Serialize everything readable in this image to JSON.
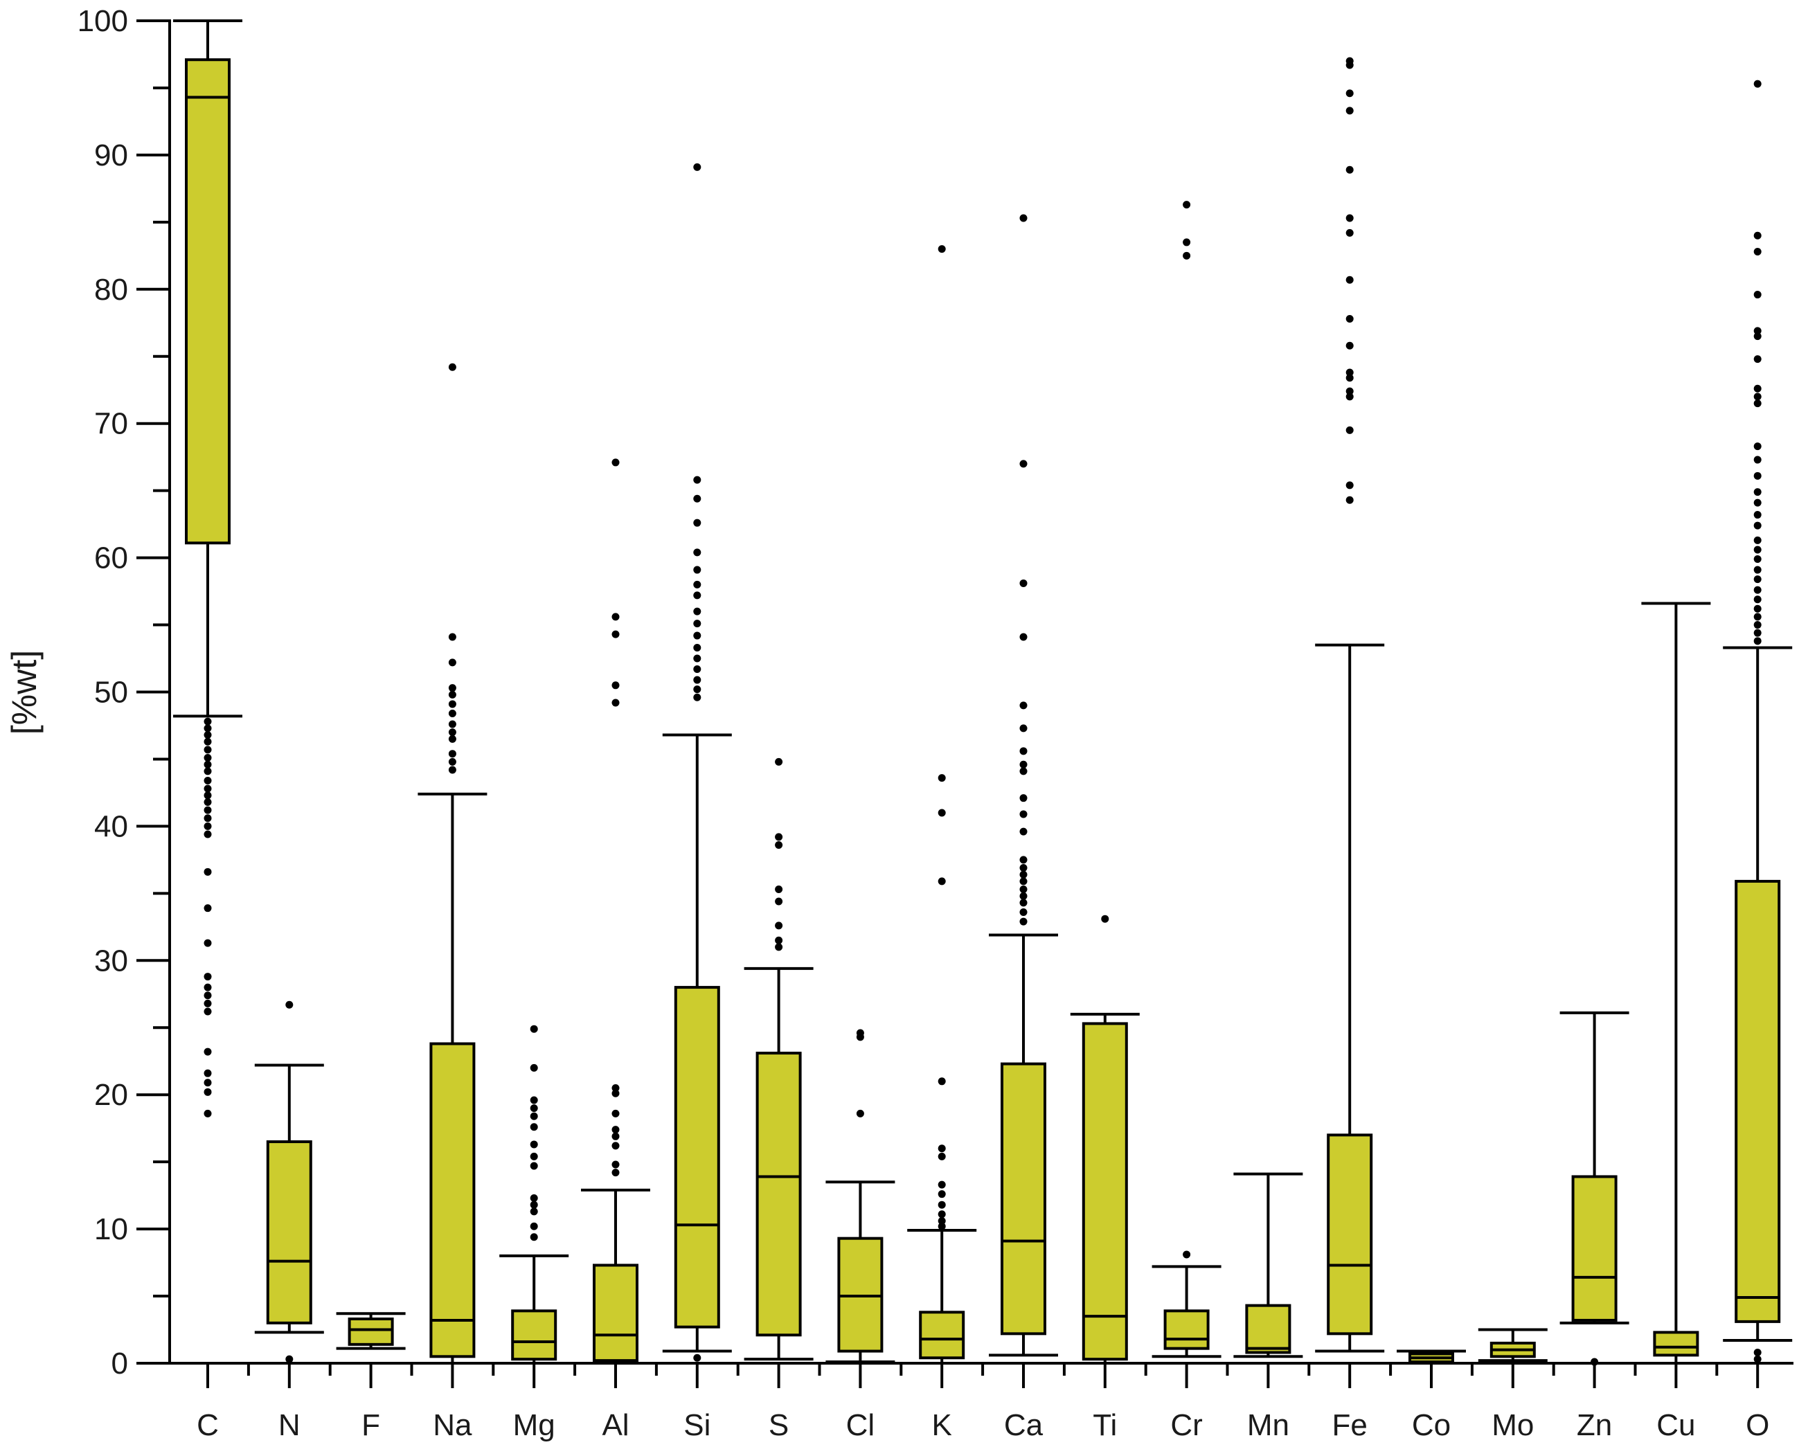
{
  "chart_data": {
    "type": "box",
    "title": "",
    "xlabel": "",
    "ylabel": "[%wt]",
    "ylim": [
      0,
      100
    ],
    "yticks": [
      0,
      10,
      20,
      30,
      40,
      50,
      60,
      70,
      80,
      90,
      100
    ],
    "box_color": "#cccc2e",
    "line_color": "#000000",
    "grid": false,
    "categories": [
      "C",
      "N",
      "F",
      "Na",
      "Mg",
      "Al",
      "Si",
      "S",
      "Cl",
      "K",
      "Ca",
      "Ti",
      "Cr",
      "Mn",
      "Fe",
      "Co",
      "Mo",
      "Zn",
      "Cu",
      "O"
    ],
    "boxes": [
      {
        "label": "C",
        "whisker_low": 48.2,
        "q1": 61.1,
        "median": 94.3,
        "q3": 97.1,
        "whisker_high": 100.0,
        "outliers": [
          47.8,
          47.3,
          46.8,
          46.3,
          45.7,
          45.1,
          44.6,
          44.1,
          43.4,
          42.8,
          42.3,
          41.8,
          41.2,
          40.6,
          40.0,
          39.4,
          36.6,
          33.9,
          31.3,
          28.8,
          28.0,
          27.4,
          26.8,
          26.2,
          23.2,
          21.6,
          20.9,
          20.2,
          18.6
        ]
      },
      {
        "label": "N",
        "whisker_low": 2.3,
        "q1": 3.0,
        "median": 7.6,
        "q3": 16.5,
        "whisker_high": 22.2,
        "outliers": [
          26.7,
          0.3
        ]
      },
      {
        "label": "F",
        "whisker_low": 1.1,
        "q1": 1.4,
        "median": 2.5,
        "q3": 3.3,
        "whisker_high": 3.7,
        "outliers": []
      },
      {
        "label": "Na",
        "whisker_low": 0.0,
        "q1": 0.5,
        "median": 3.2,
        "q3": 23.8,
        "whisker_high": 42.4,
        "outliers": [
          74.2,
          54.1,
          52.2,
          50.3,
          49.8,
          49.1,
          48.4,
          47.6,
          47.0,
          46.5,
          45.4,
          44.8,
          44.2
        ]
      },
      {
        "label": "Mg",
        "whisker_low": 0.0,
        "q1": 0.3,
        "median": 1.6,
        "q3": 3.9,
        "whisker_high": 8.0,
        "outliers": [
          24.9,
          22.0,
          19.6,
          19.0,
          18.4,
          17.6,
          16.3,
          15.4,
          14.7,
          12.3,
          11.8,
          11.3,
          10.2,
          9.4
        ]
      },
      {
        "label": "Al",
        "whisker_low": 0.0,
        "q1": 0.2,
        "median": 2.1,
        "q3": 7.3,
        "whisker_high": 12.9,
        "outliers": [
          67.1,
          55.6,
          54.3,
          50.5,
          49.2,
          20.5,
          20.1,
          18.6,
          17.4,
          16.9,
          16.2,
          14.8,
          14.2
        ]
      },
      {
        "label": "Si",
        "whisker_low": 0.9,
        "q1": 2.7,
        "median": 10.3,
        "q3": 28.0,
        "whisker_high": 46.8,
        "outliers": [
          89.1,
          65.8,
          64.4,
          62.6,
          60.4,
          59.1,
          58.0,
          57.2,
          56.0,
          55.1,
          54.2,
          53.3,
          52.5,
          51.7,
          50.9,
          50.2,
          49.6,
          0.4
        ]
      },
      {
        "label": "S",
        "whisker_low": 0.3,
        "q1": 2.1,
        "median": 13.9,
        "q3": 23.1,
        "whisker_high": 29.4,
        "outliers": [
          44.8,
          39.2,
          38.6,
          35.3,
          34.4,
          32.6,
          31.5,
          31.0
        ]
      },
      {
        "label": "Cl",
        "whisker_low": 0.1,
        "q1": 0.9,
        "median": 5.0,
        "q3": 9.3,
        "whisker_high": 13.5,
        "outliers": [
          24.6,
          24.3,
          18.6
        ]
      },
      {
        "label": "K",
        "whisker_low": 0.0,
        "q1": 0.4,
        "median": 1.8,
        "q3": 3.8,
        "whisker_high": 9.9,
        "outliers": [
          83.0,
          43.6,
          41.0,
          35.9,
          21.0,
          16.0,
          15.4,
          13.3,
          12.6,
          11.8,
          11.1,
          10.6,
          10.2
        ]
      },
      {
        "label": "Ca",
        "whisker_low": 0.6,
        "q1": 2.2,
        "median": 9.1,
        "q3": 22.3,
        "whisker_high": 31.9,
        "outliers": [
          85.3,
          67.0,
          58.1,
          54.1,
          49.0,
          47.3,
          45.6,
          44.6,
          44.1,
          42.1,
          40.9,
          39.6,
          37.5,
          36.9,
          36.4,
          35.9,
          35.3,
          34.8,
          34.3,
          33.6,
          32.9
        ]
      },
      {
        "label": "Ti",
        "whisker_low": 0.0,
        "q1": 0.3,
        "median": 3.5,
        "q3": 25.3,
        "whisker_high": 26.0,
        "outliers": [
          33.1
        ]
      },
      {
        "label": "Cr",
        "whisker_low": 0.5,
        "q1": 1.1,
        "median": 1.8,
        "q3": 3.9,
        "whisker_high": 7.2,
        "outliers": [
          86.3,
          83.5,
          82.5,
          8.1
        ]
      },
      {
        "label": "Mn",
        "whisker_low": 0.5,
        "q1": 0.8,
        "median": 1.1,
        "q3": 4.3,
        "whisker_high": 14.1,
        "outliers": []
      },
      {
        "label": "Fe",
        "whisker_low": 0.9,
        "q1": 2.2,
        "median": 7.3,
        "q3": 17.0,
        "whisker_high": 53.5,
        "outliers": [
          97.0,
          96.7,
          94.6,
          93.3,
          88.9,
          85.3,
          84.2,
          80.7,
          77.8,
          75.8,
          73.8,
          73.4,
          72.4,
          72.0,
          69.5,
          65.4,
          64.3
        ]
      },
      {
        "label": "Co",
        "whisker_low": 0.0,
        "q1": 0.1,
        "median": 0.4,
        "q3": 0.7,
        "whisker_high": 0.9,
        "outliers": []
      },
      {
        "label": "Mo",
        "whisker_low": 0.2,
        "q1": 0.5,
        "median": 1.0,
        "q3": 1.5,
        "whisker_high": 2.5,
        "outliers": []
      },
      {
        "label": "Zn",
        "whisker_low": 3.0,
        "q1": 3.2,
        "median": 6.4,
        "q3": 13.9,
        "whisker_high": 26.1,
        "outliers": [
          0.1
        ]
      },
      {
        "label": "Cu",
        "whisker_low": 0.0,
        "q1": 0.6,
        "median": 1.2,
        "q3": 2.3,
        "whisker_high": 56.6,
        "outliers": []
      },
      {
        "label": "O",
        "whisker_low": 1.7,
        "q1": 3.1,
        "median": 4.9,
        "q3": 35.9,
        "whisker_high": 53.3,
        "outliers": [
          95.3,
          84.0,
          82.8,
          79.6,
          76.9,
          76.5,
          74.8,
          72.6,
          72.0,
          71.5,
          68.3,
          67.3,
          66.1,
          64.9,
          64.1,
          63.2,
          62.4,
          61.3,
          60.6,
          59.9,
          59.1,
          58.4,
          57.6,
          56.9,
          56.2,
          55.6,
          55.0,
          54.4,
          53.8,
          0.8,
          0.3
        ]
      }
    ]
  }
}
